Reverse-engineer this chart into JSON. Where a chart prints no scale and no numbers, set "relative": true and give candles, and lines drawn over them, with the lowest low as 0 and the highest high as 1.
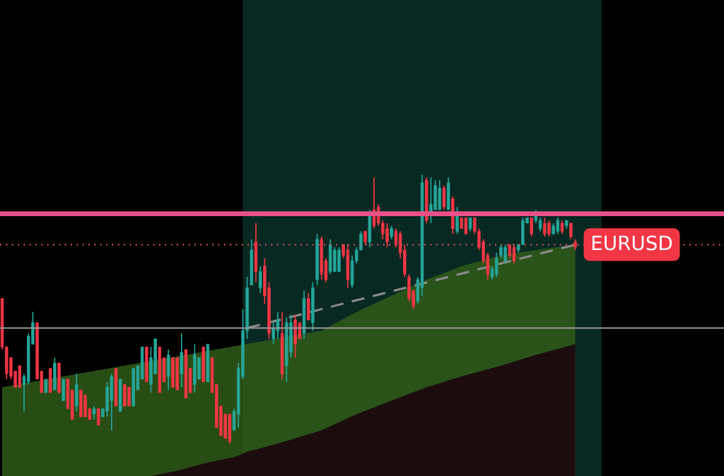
{
  "chart_data": {
    "type": "candlestick",
    "relative": true,
    "categories": [
      null,
      null,
      null,
      null,
      null,
      null,
      null,
      null,
      null,
      null,
      null,
      null,
      null,
      null,
      null,
      null,
      null,
      null,
      null,
      null,
      null,
      null,
      null,
      null,
      null,
      null,
      null,
      null,
      null,
      null,
      null,
      null,
      null,
      null,
      null,
      null,
      null,
      null,
      null,
      null,
      null,
      null,
      null,
      null,
      null,
      null,
      null,
      null,
      null,
      null,
      null,
      null,
      null,
      null,
      null,
      null,
      null,
      null,
      null,
      null,
      null,
      null,
      null,
      null,
      null,
      null,
      null,
      null,
      null,
      null,
      null,
      null,
      null,
      null,
      null,
      null,
      null,
      null,
      null,
      null,
      null,
      null,
      null,
      null,
      null,
      null,
      null,
      null,
      null,
      null,
      null,
      null,
      null,
      null,
      null,
      null,
      null,
      null,
      null,
      null,
      null,
      null,
      null,
      null,
      null,
      null,
      null,
      null,
      null,
      null,
      null,
      null,
      null,
      null,
      null,
      null,
      null,
      null,
      null,
      null,
      null,
      null,
      null,
      null,
      null,
      null,
      null,
      null,
      null,
      null,
      null,
      null
    ],
    "ohlc": [
      [
        0.54,
        0.54,
        0.35,
        0.36
      ],
      [
        0.36,
        0.36,
        0.24,
        0.26
      ],
      [
        0.32,
        0.32,
        0.24,
        0.25
      ],
      [
        0.27,
        0.27,
        0.21,
        0.21
      ],
      [
        0.29,
        0.29,
        0.21,
        0.21
      ],
      [
        0.22,
        0.26,
        0.12,
        0.25
      ],
      [
        0.23,
        0.41,
        0.22,
        0.4
      ],
      [
        0.37,
        0.49,
        0.37,
        0.45
      ],
      [
        0.45,
        0.45,
        0.24,
        0.24
      ],
      [
        0.27,
        0.27,
        0.19,
        0.19
      ],
      [
        0.19,
        0.24,
        0.19,
        0.24
      ],
      [
        0.28,
        0.28,
        0.19,
        0.19
      ],
      [
        0.2,
        0.32,
        0.2,
        0.3
      ],
      [
        0.3,
        0.3,
        0.19,
        0.19
      ],
      [
        0.16,
        0.24,
        0.16,
        0.24
      ],
      [
        0.24,
        0.24,
        0.13,
        0.13
      ],
      [
        0.2,
        0.2,
        0.09,
        0.09
      ],
      [
        0.14,
        0.26,
        0.12,
        0.22
      ],
      [
        0.2,
        0.2,
        0.1,
        0.1
      ],
      [
        0.18,
        0.18,
        0.1,
        0.1
      ],
      [
        0.13,
        0.13,
        0.09,
        0.09
      ],
      [
        0.11,
        0.14,
        0.09,
        0.13
      ],
      [
        0.13,
        0.13,
        0.07,
        0.07
      ],
      [
        0.1,
        0.13,
        0.1,
        0.13
      ],
      [
        0.12,
        0.23,
        0.1,
        0.21
      ],
      [
        0.16,
        0.26,
        0.05,
        0.25
      ],
      [
        0.28,
        0.28,
        0.14,
        0.14
      ],
      [
        0.12,
        0.24,
        0.12,
        0.24
      ],
      [
        0.22,
        0.22,
        0.14,
        0.14
      ],
      [
        0.21,
        0.21,
        0.14,
        0.14
      ],
      [
        0.14,
        0.28,
        0.14,
        0.28
      ],
      [
        0.2,
        0.29,
        0.2,
        0.29
      ],
      [
        0.24,
        0.36,
        0.24,
        0.36
      ],
      [
        0.36,
        0.36,
        0.23,
        0.23
      ],
      [
        0.22,
        0.36,
        0.19,
        0.32
      ],
      [
        0.26,
        0.39,
        0.26,
        0.39
      ],
      [
        0.36,
        0.36,
        0.19,
        0.19
      ],
      [
        0.32,
        0.32,
        0.23,
        0.23
      ],
      [
        0.25,
        0.35,
        0.2,
        0.33
      ],
      [
        0.32,
        0.32,
        0.21,
        0.21
      ],
      [
        0.32,
        0.32,
        0.2,
        0.2
      ],
      [
        0.26,
        0.41,
        0.21,
        0.34
      ],
      [
        0.35,
        0.35,
        0.17,
        0.17
      ],
      [
        0.28,
        0.28,
        0.19,
        0.19
      ],
      [
        0.22,
        0.37,
        0.19,
        0.33
      ],
      [
        0.24,
        0.32,
        0.24,
        0.32
      ],
      [
        0.36,
        0.36,
        0.23,
        0.23
      ],
      [
        0.23,
        0.37,
        0.23,
        0.37
      ],
      [
        0.32,
        0.32,
        0.19,
        0.19
      ],
      [
        0.22,
        0.22,
        0.06,
        0.06
      ],
      [
        0.14,
        0.14,
        0.03,
        0.03
      ],
      [
        0.11,
        0.11,
        0.02,
        0.02
      ],
      [
        0.11,
        0.11,
        0.0,
        0.01
      ],
      [
        0.05,
        0.13,
        0.05,
        0.12
      ],
      [
        0.11,
        0.3,
        0.06,
        0.28
      ],
      [
        0.25,
        0.5,
        0.24,
        0.42
      ],
      [
        0.42,
        0.62,
        0.39,
        0.58
      ],
      [
        0.59,
        0.76,
        0.59,
        0.72
      ],
      [
        0.75,
        0.82,
        0.6,
        0.64
      ],
      [
        0.58,
        0.66,
        0.56,
        0.64
      ],
      [
        0.66,
        0.69,
        0.52,
        0.55
      ],
      [
        0.58,
        0.6,
        0.39,
        0.41
      ],
      [
        0.39,
        0.45,
        0.37,
        0.43
      ],
      [
        0.42,
        0.49,
        0.39,
        0.46
      ],
      [
        0.41,
        0.49,
        0.24,
        0.26
      ],
      [
        0.29,
        0.47,
        0.23,
        0.45
      ],
      [
        0.34,
        0.48,
        0.32,
        0.45
      ],
      [
        0.46,
        0.48,
        0.32,
        0.37
      ],
      [
        0.45,
        0.45,
        0.39,
        0.39
      ],
      [
        0.41,
        0.57,
        0.39,
        0.54
      ],
      [
        0.54,
        0.56,
        0.46,
        0.46
      ],
      [
        0.45,
        0.6,
        0.42,
        0.58
      ],
      [
        0.61,
        0.78,
        0.59,
        0.76
      ],
      [
        0.76,
        0.77,
        0.61,
        0.63
      ],
      [
        0.68,
        0.69,
        0.6,
        0.61
      ],
      [
        0.64,
        0.76,
        0.63,
        0.74
      ],
      [
        0.64,
        0.73,
        0.64,
        0.72
      ],
      [
        0.64,
        0.73,
        0.64,
        0.72
      ],
      [
        0.74,
        0.74,
        0.69,
        0.7
      ],
      [
        0.72,
        0.74,
        0.58,
        0.61
      ],
      [
        0.59,
        0.7,
        0.58,
        0.68
      ],
      [
        0.68,
        0.73,
        0.67,
        0.72
      ],
      [
        0.72,
        0.79,
        0.72,
        0.78
      ],
      [
        0.79,
        0.79,
        0.74,
        0.75
      ],
      [
        0.75,
        0.87,
        0.73,
        0.86
      ],
      [
        0.87,
        0.99,
        0.8,
        0.81
      ],
      [
        0.88,
        0.89,
        0.81,
        0.82
      ],
      [
        0.82,
        0.83,
        0.76,
        0.78
      ],
      [
        0.8,
        0.82,
        0.73,
        0.75
      ],
      [
        0.77,
        0.81,
        0.76,
        0.8
      ],
      [
        0.79,
        0.8,
        0.73,
        0.74
      ],
      [
        0.78,
        0.79,
        0.69,
        0.71
      ],
      [
        0.72,
        0.74,
        0.62,
        0.63
      ],
      [
        0.62,
        0.63,
        0.53,
        0.54
      ],
      [
        0.57,
        0.57,
        0.5,
        0.51
      ],
      [
        0.53,
        0.62,
        0.52,
        0.61
      ],
      [
        0.58,
        1.0,
        0.55,
        0.97
      ],
      [
        0.98,
        0.99,
        0.82,
        0.83
      ],
      [
        0.86,
        0.99,
        0.82,
        0.89
      ],
      [
        0.87,
        0.98,
        0.87,
        0.96
      ],
      [
        0.87,
        0.98,
        0.87,
        0.95
      ],
      [
        0.95,
        0.96,
        0.87,
        0.88
      ],
      [
        0.87,
        0.99,
        0.87,
        0.97
      ],
      [
        0.91,
        0.92,
        0.78,
        0.8
      ],
      [
        0.79,
        0.88,
        0.78,
        0.86
      ],
      [
        0.84,
        0.84,
        0.8,
        0.8
      ],
      [
        0.84,
        0.84,
        0.78,
        0.78
      ],
      [
        0.8,
        0.84,
        0.79,
        0.84
      ],
      [
        0.84,
        0.84,
        0.78,
        0.79
      ],
      [
        0.79,
        0.8,
        0.72,
        0.73
      ],
      [
        0.75,
        0.76,
        0.67,
        0.68
      ],
      [
        0.7,
        0.71,
        0.61,
        0.63
      ],
      [
        0.62,
        0.66,
        0.61,
        0.65
      ],
      [
        0.63,
        0.71,
        0.62,
        0.69
      ],
      [
        0.7,
        0.74,
        0.69,
        0.73
      ],
      [
        0.68,
        0.74,
        0.67,
        0.73
      ],
      [
        0.74,
        0.74,
        0.69,
        0.7
      ],
      [
        0.73,
        0.74,
        0.67,
        0.68
      ],
      [
        0.72,
        0.74,
        0.71,
        0.74
      ],
      [
        0.74,
        0.84,
        0.74,
        0.83
      ],
      [
        0.82,
        0.84,
        0.82,
        0.84
      ],
      [
        0.84,
        0.84,
        0.77,
        0.78
      ],
      [
        0.83,
        0.87,
        0.82,
        0.86
      ],
      [
        0.8,
        0.84,
        0.79,
        0.83
      ],
      [
        0.82,
        0.84,
        0.77,
        0.78
      ],
      [
        0.82,
        0.83,
        0.77,
        0.78
      ],
      [
        0.78,
        0.82,
        0.78,
        0.81
      ],
      [
        0.79,
        0.84,
        0.78,
        0.83
      ],
      [
        0.82,
        0.83,
        0.78,
        0.79
      ],
      [
        0.81,
        0.83,
        0.8,
        0.83
      ],
      [
        0.82,
        0.82,
        0.76,
        0.77
      ],
      [
        0.75,
        0.76,
        0.72,
        0.73
      ]
    ],
    "colors": [
      "#f23645",
      "#f23645",
      "#f23645",
      "#f23645",
      "#f23645",
      "#26a69a",
      "#26a69a",
      "#26a69a",
      "#f23645",
      "#f23645",
      "#26a69a",
      "#f23645",
      "#26a69a",
      "#f23645",
      "#26a69a",
      "#f23645",
      "#f23645",
      "#26a69a",
      "#f23645",
      "#f23645",
      "#f23645",
      "#26a69a",
      "#f23645",
      "#26a69a",
      "#26a69a",
      "#26a69a",
      "#f23645",
      "#26a69a",
      "#f23645",
      "#f23645",
      "#26a69a",
      "#26a69a",
      "#26a69a",
      "#f23645",
      "#26a69a",
      "#26a69a",
      "#f23645",
      "#f23645",
      "#26a69a",
      "#f23645",
      "#f23645",
      "#26a69a",
      "#f23645",
      "#f23645",
      "#26a69a",
      "#26a69a",
      "#f23645",
      "#26a69a",
      "#f23645",
      "#f23645",
      "#f23645",
      "#f23645",
      "#f23645",
      "#26a69a",
      "#26a69a",
      "#26a69a",
      "#26a69a",
      "#26a69a",
      "#f23645",
      "#26a69a",
      "#f23645",
      "#f23645",
      "#26a69a",
      "#26a69a",
      "#f23645",
      "#26a69a",
      "#26a69a",
      "#f23645",
      "#f23645",
      "#26a69a",
      "#f23645",
      "#26a69a",
      "#26a69a",
      "#f23645",
      "#f23645",
      "#26a69a",
      "#26a69a",
      "#26a69a",
      "#f23645",
      "#f23645",
      "#26a69a",
      "#26a69a",
      "#26a69a",
      "#f23645",
      "#26a69a",
      "#f23645",
      "#f23645",
      "#f23645",
      "#f23645",
      "#26a69a",
      "#f23645",
      "#f23645",
      "#f23645",
      "#f23645",
      "#f23645",
      "#26a69a",
      "#26a69a",
      "#f23645",
      "#26a69a",
      "#26a69a",
      "#26a69a",
      "#f23645",
      "#26a69a",
      "#f23645",
      "#26a69a",
      "#f23645",
      "#f23645",
      "#26a69a",
      "#f23645",
      "#f23645",
      "#f23645",
      "#f23645",
      "#26a69a",
      "#26a69a",
      "#26a69a",
      "#26a69a",
      "#f23645",
      "#f23645",
      "#26a69a",
      "#26a69a",
      "#26a69a",
      "#f23645",
      "#26a69a",
      "#26a69a",
      "#f23645",
      "#f23645",
      "#26a69a",
      "#26a69a",
      "#f23645",
      "#26a69a",
      "#f23645",
      "#f23645"
    ],
    "series": [
      {
        "type": "area",
        "color": "#2f5a18",
        "values": [
          0.21,
          null,
          null,
          null,
          null,
          null,
          null,
          null,
          null,
          null,
          null,
          null,
          null,
          null,
          null,
          null,
          null,
          null,
          null,
          null,
          null,
          null,
          null,
          null,
          null,
          null,
          null,
          null,
          null,
          null,
          null,
          null,
          null,
          null,
          null,
          null,
          null,
          null,
          null,
          null,
          null,
          null,
          null,
          null,
          null,
          null,
          null,
          null,
          null,
          null,
          null,
          null,
          null,
          null,
          null,
          null,
          null,
          null,
          null,
          null,
          null,
          null,
          null,
          null,
          null,
          null,
          null,
          null,
          null,
          null,
          null,
          null,
          null,
          0.42,
          null,
          null,
          null,
          null,
          null,
          null,
          null,
          0.49,
          null,
          null,
          null,
          null,
          null,
          null,
          null,
          0.55,
          null,
          null,
          null,
          null,
          null,
          null,
          null,
          0.61,
          null,
          null,
          null,
          null,
          null,
          null,
          null,
          0.66,
          null,
          null,
          null,
          null,
          null,
          null,
          null,
          null,
          0.7,
          null,
          null,
          null,
          null,
          null,
          null,
          null,
          0.72,
          null,
          null,
          null,
          null,
          null,
          null,
          null,
          null,
          0.74
        ]
      },
      {
        "type": "area",
        "color": "#1c0c0e",
        "values": [
          -0.12,
          null,
          null,
          null,
          null,
          null,
          null,
          null,
          -0.12,
          null,
          null,
          null,
          null,
          null,
          null,
          null,
          -0.12,
          null,
          null,
          null,
          null,
          -0.12,
          null,
          null,
          null,
          null,
          null,
          -0.12,
          null,
          null,
          null,
          null,
          null,
          null,
          -0.12,
          null,
          null,
          null,
          null,
          null,
          -0.1,
          null,
          null,
          null,
          null,
          null,
          null,
          -0.07,
          null,
          null,
          null,
          null,
          null,
          -0.05,
          null,
          null,
          -0.03,
          null,
          null,
          null,
          null,
          null,
          null,
          null,
          null,
          0.01,
          null,
          null,
          null,
          null,
          null,
          null,
          null,
          0.05,
          null,
          null,
          null,
          null,
          null,
          null,
          null,
          0.11,
          null,
          null,
          null,
          null,
          null,
          null,
          null,
          0.16,
          null,
          null,
          null,
          null,
          null,
          null,
          null,
          0.21,
          null,
          null,
          null,
          null,
          null,
          null,
          null,
          0.25,
          null,
          null,
          null,
          null,
          null,
          null,
          null,
          null,
          0.29,
          null,
          null,
          null,
          null,
          null,
          null,
          null,
          0.33,
          null,
          null,
          null,
          null,
          null,
          null,
          null,
          null,
          0.37
        ]
      },
      {
        "type": "line",
        "color": "#8c8c8c",
        "line_style": "dashed",
        "values": [
          null,
          null,
          null,
          null,
          null,
          null,
          null,
          null,
          null,
          null,
          null,
          null,
          null,
          null,
          null,
          null,
          null,
          null,
          null,
          null,
          null,
          null,
          null,
          null,
          null,
          null,
          null,
          null,
          null,
          null,
          null,
          null,
          null,
          null,
          null,
          null,
          null,
          null,
          null,
          null,
          null,
          null,
          null,
          null,
          null,
          null,
          null,
          null,
          null,
          null,
          null,
          null,
          null,
          null,
          null,
          null,
          0.43,
          null,
          null,
          null,
          null,
          null,
          null,
          null,
          null,
          null,
          null,
          null,
          null,
          null,
          null,
          null,
          null,
          null,
          null,
          null,
          null,
          null,
          null,
          null,
          null,
          null,
          null,
          null,
          null,
          null,
          null,
          null,
          null,
          null,
          null,
          null,
          null,
          null,
          null,
          null,
          null,
          null,
          null,
          null,
          null,
          null,
          null,
          null,
          null,
          null,
          null,
          null,
          null,
          null,
          null,
          null,
          null,
          null,
          null,
          null,
          null,
          null,
          null,
          null,
          null,
          null,
          null,
          null,
          null,
          null,
          null,
          null,
          null,
          null,
          null,
          0.74
        ]
      }
    ],
    "ref_lines": [
      {
        "axis": "y",
        "value": 0.855,
        "color": "#e8508a",
        "line_style": "solid"
      },
      {
        "axis": "y",
        "value": 0.74,
        "color": "#e05565",
        "line_style": "dotted"
      },
      {
        "axis": "y",
        "value": 0.43,
        "color": "#9a9a9a",
        "line_style": "solid"
      }
    ],
    "annotations": [
      {
        "text": "EURUSD",
        "y": 0.74
      }
    ]
  }
}
